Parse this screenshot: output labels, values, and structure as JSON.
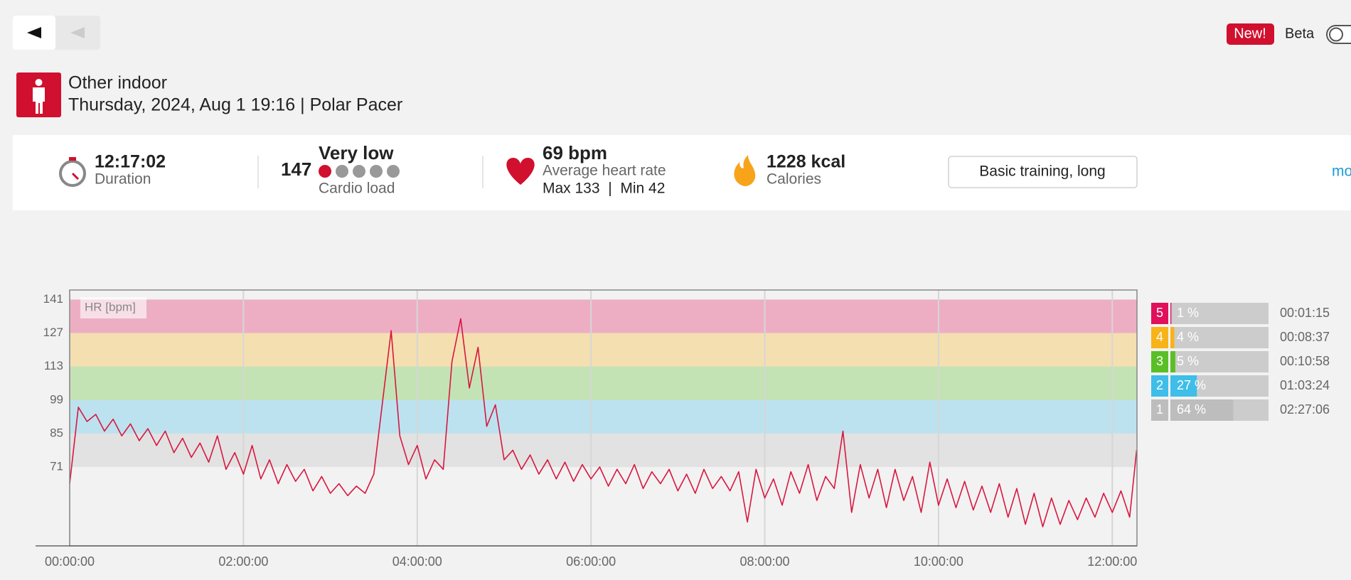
{
  "header": {
    "badge": "New!",
    "beta": "Beta",
    "sport": "Other indoor",
    "subtitle": "Thursday, 2024, Aug 1 19:16 | Polar Pacer"
  },
  "summary": {
    "duration": "12:17:02",
    "duration_label": "Duration",
    "cardio_value": "147",
    "cardio_status": "Very low",
    "cardio_label": "Cardio load",
    "hr_avg": "69 bpm",
    "hr_label": "Average heart rate",
    "hr_maxmin": "Max 133  |  Min 42",
    "calories": "1228 kcal",
    "calories_label": "Calories",
    "benefit": "Basic training, long",
    "more": "mo"
  },
  "chart_data": {
    "type": "line",
    "y_label": "HR [bpm]",
    "color": "#d9163f",
    "xlim": [
      0,
      12.284
    ],
    "ylim": [
      38,
      145
    ],
    "xticks": [
      {
        "value": 0,
        "label": "00:00:00"
      },
      {
        "value": 2,
        "label": "02:00:00"
      },
      {
        "value": 4,
        "label": "04:00:00"
      },
      {
        "value": 6,
        "label": "06:00:00"
      },
      {
        "value": 8,
        "label": "08:00:00"
      },
      {
        "value": 10,
        "label": "10:00:00"
      },
      {
        "value": 12,
        "label": "12:00:00"
      }
    ],
    "yticks": [
      71,
      85,
      99,
      113,
      127,
      141
    ],
    "grid": true,
    "zones": [
      {
        "name": "5",
        "color": "#e0105a",
        "range": [
          127,
          141
        ],
        "percent": 1,
        "percent_label": "1 %",
        "duration": "00:01:15"
      },
      {
        "name": "4",
        "color": "#f7b318",
        "range": [
          113,
          127
        ],
        "percent": 4,
        "percent_label": "4 %",
        "duration": "00:08:37"
      },
      {
        "name": "3",
        "color": "#5abf26",
        "range": [
          99,
          113
        ],
        "percent": 5,
        "percent_label": "5 %",
        "duration": "00:10:58"
      },
      {
        "name": "2",
        "color": "#3ebee8",
        "range": [
          85,
          99
        ],
        "percent": 27,
        "percent_label": "27 %",
        "duration": "01:03:24"
      },
      {
        "name": "1",
        "color": "#bdbdbd",
        "range": [
          71,
          85
        ],
        "percent": 64,
        "percent_label": "64 %",
        "duration": "02:27:06"
      }
    ],
    "x": [
      0.0,
      0.1,
      0.2,
      0.3,
      0.4,
      0.5,
      0.6,
      0.7,
      0.8,
      0.9,
      1.0,
      1.1,
      1.2,
      1.3,
      1.4,
      1.5,
      1.6,
      1.7,
      1.8,
      1.9,
      2.0,
      2.1,
      2.2,
      2.3,
      2.4,
      2.5,
      2.6,
      2.7,
      2.8,
      2.9,
      3.0,
      3.1,
      3.2,
      3.3,
      3.4,
      3.5,
      3.6,
      3.7,
      3.8,
      3.9,
      4.0,
      4.1,
      4.2,
      4.3,
      4.4,
      4.5,
      4.6,
      4.7,
      4.8,
      4.9,
      5.0,
      5.1,
      5.2,
      5.3,
      5.4,
      5.5,
      5.6,
      5.7,
      5.8,
      5.9,
      6.0,
      6.1,
      6.2,
      6.3,
      6.4,
      6.5,
      6.6,
      6.7,
      6.8,
      6.9,
      7.0,
      7.1,
      7.2,
      7.3,
      7.4,
      7.5,
      7.6,
      7.7,
      7.8,
      7.9,
      8.0,
      8.1,
      8.2,
      8.3,
      8.4,
      8.5,
      8.6,
      8.7,
      8.8,
      8.9,
      9.0,
      9.1,
      9.2,
      9.3,
      9.4,
      9.5,
      9.6,
      9.7,
      9.8,
      9.9,
      10.0,
      10.1,
      10.2,
      10.3,
      10.4,
      10.5,
      10.6,
      10.7,
      10.8,
      10.9,
      11.0,
      11.1,
      11.2,
      11.3,
      11.4,
      11.5,
      11.6,
      11.7,
      11.8,
      11.9,
      12.0,
      12.1,
      12.2,
      12.28
    ],
    "values": [
      64,
      96,
      90,
      93,
      86,
      91,
      84,
      89,
      82,
      87,
      80,
      86,
      77,
      83,
      75,
      81,
      73,
      84,
      70,
      77,
      68,
      80,
      66,
      74,
      64,
      72,
      65,
      70,
      61,
      67,
      60,
      64,
      59,
      63,
      60,
      68,
      98,
      128,
      84,
      72,
      80,
      66,
      74,
      70,
      115,
      133,
      104,
      121,
      88,
      97,
      74,
      78,
      70,
      76,
      68,
      74,
      66,
      73,
      65,
      72,
      66,
      71,
      63,
      70,
      64,
      72,
      62,
      69,
      64,
      70,
      61,
      68,
      60,
      70,
      62,
      67,
      61,
      69,
      48,
      70,
      58,
      66,
      55,
      69,
      60,
      72,
      57,
      67,
      62,
      86,
      52,
      72,
      58,
      70,
      54,
      70,
      57,
      67,
      52,
      73,
      55,
      66,
      54,
      65,
      53,
      63,
      52,
      64,
      50,
      62,
      47,
      60,
      46,
      58,
      47,
      57,
      49,
      58,
      50,
      60,
      52,
      61,
      50,
      78
    ]
  }
}
